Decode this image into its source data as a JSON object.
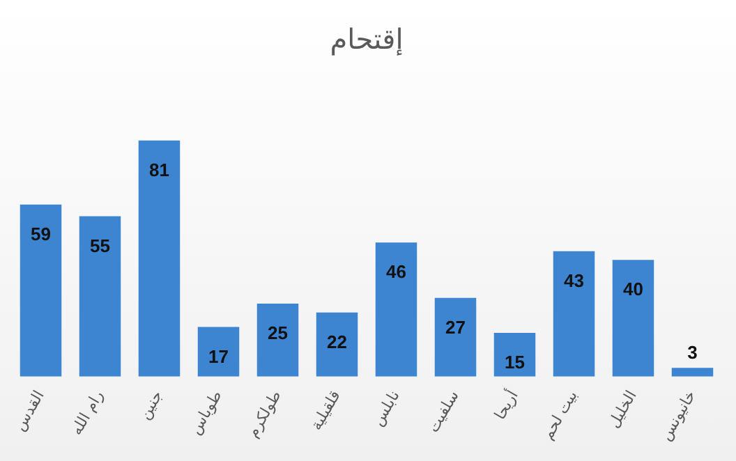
{
  "chart_data": {
    "type": "bar",
    "title": "إقتحام",
    "categories": [
      "القدس",
      "رام الله",
      "جنين",
      "طوباس",
      "طولكرم",
      "قلقيلية",
      "نابلس",
      "سلفيت",
      "أريحا",
      "بيت لحم",
      "الخليل",
      "خانيونس"
    ],
    "values": [
      59,
      55,
      81,
      17,
      25,
      22,
      46,
      27,
      15,
      43,
      40,
      3
    ],
    "color": "#3d85d0",
    "data_labels": true,
    "grid": false,
    "legend": false
  }
}
